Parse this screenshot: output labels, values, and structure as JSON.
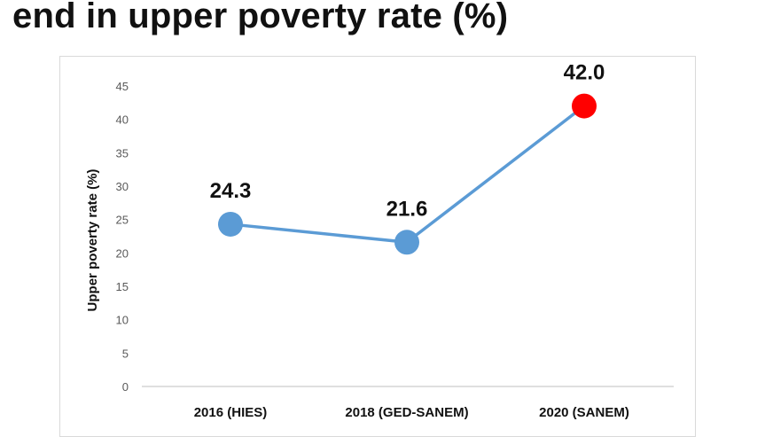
{
  "slide": {
    "title": "end in upper poverty rate (%)"
  },
  "colors": {
    "line": "#5b9bd5",
    "marker": "#5b9bd5",
    "highlight_marker": "#ff0000",
    "axis": "#bfbfbf"
  },
  "chart_data": {
    "type": "line",
    "title": "",
    "xlabel": "",
    "ylabel": "Upper poverty rate (%)",
    "categories": [
      "2016 (HIES)",
      "2018 (GED-SANEM)",
      "2020 (SANEM)"
    ],
    "series": [
      {
        "values": [
          24.3,
          21.6,
          42.0
        ]
      }
    ],
    "data_labels": [
      "24.3",
      "21.6",
      "42.0"
    ],
    "highlight_index": 2,
    "ylim": [
      0,
      45
    ],
    "yticks": [
      0,
      5,
      10,
      15,
      20,
      25,
      30,
      35,
      40,
      45
    ],
    "grid": false,
    "legend": "none"
  }
}
